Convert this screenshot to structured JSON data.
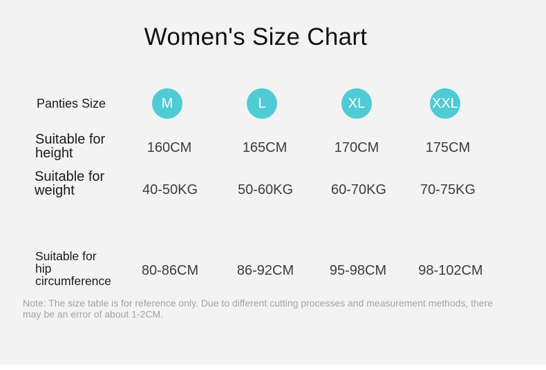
{
  "title": "Women's Size Chart",
  "labels": {
    "size": "Panties Size",
    "height": [
      "Suitable for",
      "height"
    ],
    "weight": [
      "Suitable for",
      "weight"
    ],
    "hip": [
      "Suitable for",
      "hip",
      "circumference"
    ]
  },
  "sizes": [
    "M",
    "L",
    "XL",
    "XXL"
  ],
  "heights": [
    "160CM",
    "165CM",
    "170CM",
    "175CM"
  ],
  "weights": [
    "40-50KG",
    "50-60KG",
    "60-70KG",
    "70-75KG"
  ],
  "hips": [
    "80-86CM",
    "86-92CM",
    "95-98CM",
    "98-102CM"
  ],
  "note": "Note: The size table is for reference only. Due to different cutting processes and measurement methods, there may be an error of about 1-2CM.",
  "colors": {
    "badge": "#4fcbd3",
    "background": "#f3f3f3"
  }
}
